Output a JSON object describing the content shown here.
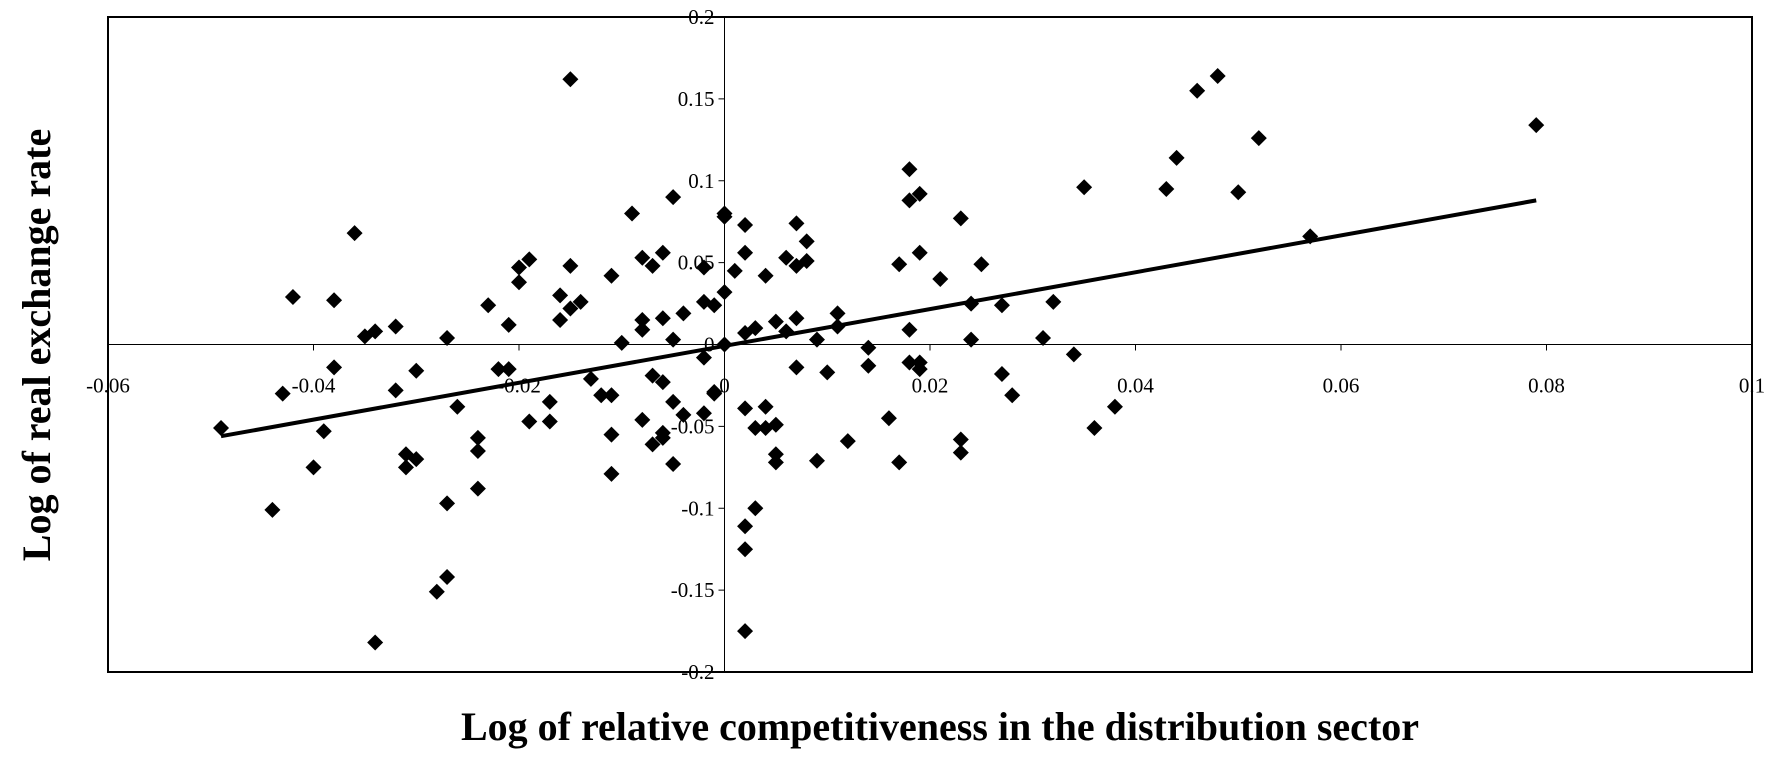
{
  "chart_data": {
    "type": "scatter",
    "x_label": "Log of relative competitiveness in the distribution sector",
    "y_label": "Log of real exchange rate",
    "xlim": [
      -0.06,
      0.1
    ],
    "ylim": [
      -0.2,
      0.2
    ],
    "xticks": [
      -0.06,
      -0.04,
      -0.02,
      0,
      0.02,
      0.04,
      0.06,
      0.08,
      0.1
    ],
    "yticks": [
      -0.2,
      -0.15,
      -0.1,
      -0.05,
      0,
      0.05,
      0.1,
      0.15,
      0.2
    ],
    "color": "#000000",
    "x": [
      -0.049,
      -0.044,
      -0.042,
      -0.043,
      -0.04,
      -0.039,
      -0.038,
      -0.038,
      -0.036,
      -0.035,
      -0.034,
      -0.034,
      -0.032,
      -0.032,
      -0.031,
      -0.031,
      -0.03,
      -0.03,
      -0.028,
      -0.027,
      -0.027,
      -0.027,
      -0.026,
      -0.024,
      -0.024,
      -0.024,
      -0.023,
      -0.022,
      -0.021,
      -0.021,
      -0.02,
      -0.02,
      -0.019,
      -0.019,
      -0.017,
      -0.017,
      -0.016,
      -0.016,
      -0.015,
      -0.015,
      -0.015,
      -0.014,
      -0.013,
      -0.012,
      -0.011,
      -0.011,
      -0.011,
      -0.011,
      -0.01,
      -0.009,
      -0.008,
      -0.008,
      -0.008,
      -0.008,
      -0.007,
      -0.007,
      -0.007,
      -0.006,
      -0.006,
      -0.006,
      -0.006,
      -0.006,
      -0.005,
      -0.005,
      -0.005,
      -0.005,
      -0.004,
      -0.004,
      -0.002,
      -0.002,
      -0.002,
      -0.002,
      -0.001,
      -0.001,
      -0.001,
      0,
      0,
      0,
      0,
      0.001,
      0.002,
      0.002,
      0.002,
      0.002,
      0.002,
      0.002,
      0.002,
      0.003,
      0.003,
      0.003,
      0.004,
      0.004,
      0.004,
      0.005,
      0.005,
      0.005,
      0.005,
      0.006,
      0.006,
      0.007,
      0.007,
      0.007,
      0.007,
      0.008,
      0.008,
      0.009,
      0.009,
      0.01,
      0.011,
      0.011,
      0.012,
      0.014,
      0.014,
      0.016,
      0.017,
      0.017,
      0.018,
      0.018,
      0.018,
      0.018,
      0.019,
      0.019,
      0.019,
      0.019,
      0.021,
      0.023,
      0.023,
      0.023,
      0.024,
      0.024,
      0.025,
      0.027,
      0.027,
      0.028,
      0.031,
      0.032,
      0.034,
      0.035,
      0.036,
      0.038,
      0.043,
      0.044,
      0.046,
      0.048,
      0.05,
      0.052,
      0.057,
      0.079
    ],
    "values": [
      -0.051,
      -0.101,
      0.029,
      -0.03,
      -0.075,
      -0.053,
      0.027,
      -0.014,
      0.068,
      0.005,
      0.008,
      -0.182,
      -0.028,
      0.011,
      -0.067,
      -0.075,
      -0.016,
      -0.07,
      -0.151,
      0.004,
      -0.097,
      -0.142,
      -0.038,
      -0.065,
      -0.088,
      -0.057,
      0.024,
      -0.015,
      -0.015,
      0.012,
      0.047,
      0.038,
      0.052,
      -0.047,
      -0.035,
      -0.047,
      0.015,
      0.03,
      0.162,
      0.048,
      0.022,
      0.026,
      -0.021,
      -0.031,
      0.042,
      -0.031,
      -0.055,
      -0.079,
      0.001,
      0.08,
      0.053,
      0.009,
      0.015,
      -0.046,
      0.048,
      -0.019,
      -0.061,
      0.056,
      -0.057,
      0.016,
      -0.023,
      -0.054,
      -0.073,
      0.09,
      0.003,
      -0.035,
      0.019,
      -0.043,
      0.047,
      0.026,
      -0.008,
      -0.042,
      0.024,
      -0.029,
      -0.03,
      0.08,
      0.078,
      0.032,
      0.0,
      0.045,
      0.073,
      -0.039,
      -0.111,
      -0.125,
      -0.175,
      0.007,
      0.056,
      -0.051,
      -0.1,
      0.01,
      0.042,
      -0.051,
      -0.038,
      0.014,
      -0.072,
      -0.049,
      -0.067,
      0.008,
      0.053,
      0.074,
      0.016,
      0.048,
      -0.014,
      0.063,
      0.051,
      -0.071,
      0.003,
      -0.017,
      0.019,
      0.011,
      -0.059,
      -0.002,
      -0.013,
      -0.045,
      0.049,
      -0.072,
      0.088,
      -0.011,
      0.009,
      0.107,
      -0.015,
      0.056,
      0.092,
      -0.011,
      0.04,
      0.077,
      -0.058,
      -0.066,
      0.003,
      0.025,
      0.049,
      -0.018,
      0.024,
      -0.031,
      0.004,
      0.026,
      -0.006,
      0.096,
      -0.051,
      -0.038,
      0.095,
      0.114,
      0.155,
      0.164,
      0.093,
      0.126,
      0.066,
      0.134
    ],
    "trendline": {
      "x": [
        -0.049,
        0.079
      ],
      "values": [
        -0.056,
        0.088
      ]
    }
  }
}
